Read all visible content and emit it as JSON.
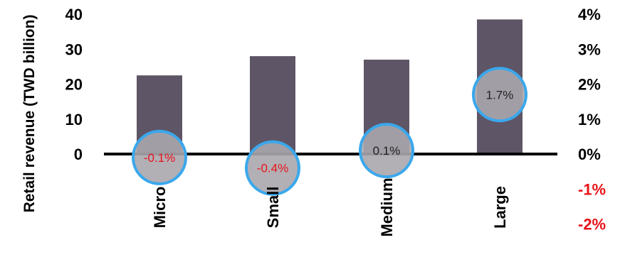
{
  "chart_data": {
    "type": "bar",
    "categories": [
      "Micro",
      "Small",
      "Medium",
      "Large"
    ],
    "series": [
      {
        "values": [
          22.5,
          28,
          27,
          38.5
        ],
        "axis": "left"
      },
      {
        "values": [
          -0.1,
          -0.4,
          0.1,
          1.7
        ],
        "axis": "right",
        "display": "circle-marker"
      }
    ],
    "data_labels": [
      "-0.1%",
      "-0.4%",
      "0.1%",
      "1.7%"
    ],
    "ylabel": "Retail revenue (TWD billion)",
    "y_ticks_left": [
      "40",
      "30",
      "20",
      "10",
      "0"
    ],
    "y_ticks_right": [
      "4%",
      "3%",
      "2%",
      "1%",
      "0%",
      "-1%",
      "-2%"
    ],
    "ylim_left": [
      0,
      40
    ],
    "ylim_right": [
      -2,
      4
    ],
    "grid": false,
    "legend": "none",
    "colors": {
      "bar": "#5e5566",
      "circle_fill": "#aaa6ad",
      "circle_stroke": "#3aa8ec",
      "negative_text": "#e8141a",
      "positive_text": "#222222",
      "axis": "#000000"
    }
  }
}
